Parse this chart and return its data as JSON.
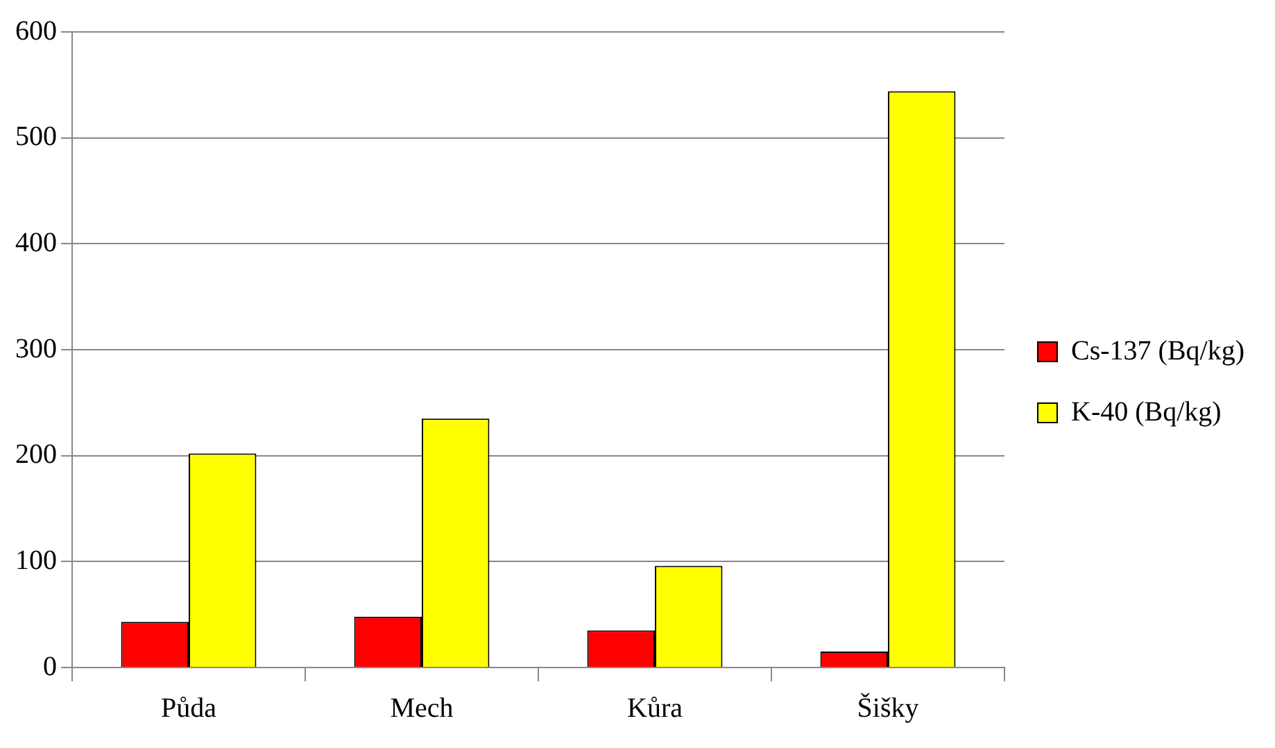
{
  "chart_data": {
    "type": "bar",
    "categories": [
      "Půda",
      "Mech",
      "Kůra",
      "Šišky"
    ],
    "series": [
      {
        "name": "Cs-137 (Bq/kg)",
        "color": "#ff0000",
        "values": [
          43,
          48,
          35,
          15
        ]
      },
      {
        "name": "K-40 (Bq/kg)",
        "color": "#ffff00",
        "values": [
          202,
          235,
          96,
          544
        ]
      }
    ],
    "ylim": [
      0,
      600
    ],
    "yticks": [
      0,
      100,
      200,
      300,
      400,
      500,
      600
    ],
    "grid": "y",
    "legend": "right"
  }
}
